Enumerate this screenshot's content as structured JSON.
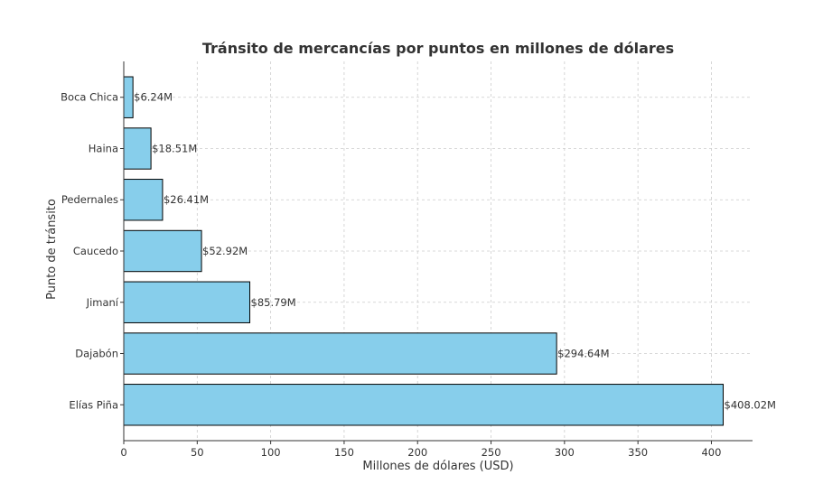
{
  "chart_data": {
    "type": "bar",
    "orientation": "horizontal",
    "title": "Tránsito de mercancías por puntos en millones de dólares",
    "xlabel": "Millones de dólares (USD)",
    "ylabel": "Punto de tránsito",
    "categories": [
      "Elías Piña",
      "Dajabón",
      "Jimaní",
      "Caucedo",
      "Pedernales",
      "Haina",
      "Boca Chica"
    ],
    "values": [
      408.02,
      294.64,
      85.79,
      52.92,
      26.41,
      18.51,
      6.24
    ],
    "data_labels": [
      "$408.02M",
      "$294.64M",
      "$85.79M",
      "$52.92M",
      "$26.41M",
      "$18.51M",
      "$6.24M"
    ],
    "xlim": [
      0,
      428
    ],
    "xticks": [
      0,
      50,
      100,
      150,
      200,
      250,
      300,
      350,
      400
    ],
    "grid": true,
    "bar_color": "#87ceeb",
    "edge_color": "#000000"
  }
}
